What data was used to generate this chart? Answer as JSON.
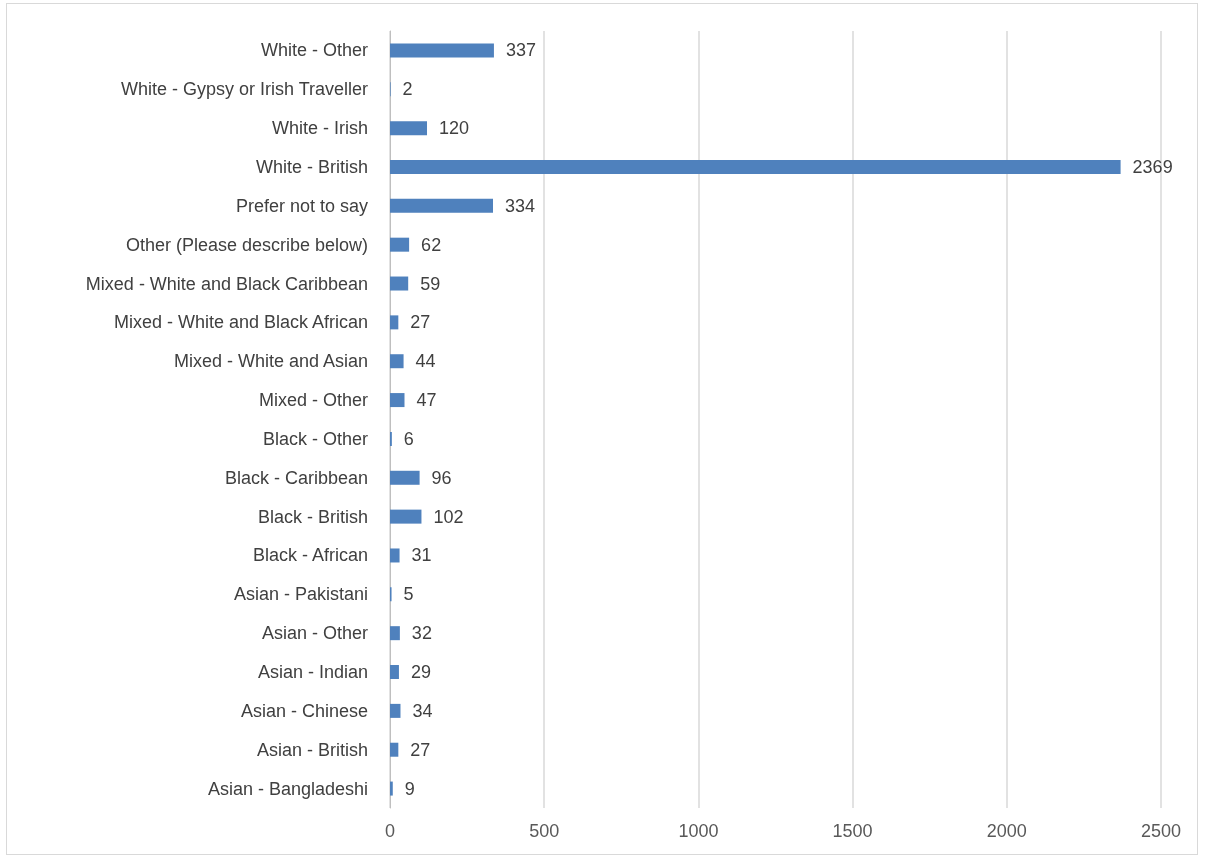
{
  "chart_data": {
    "type": "bar",
    "orientation": "horizontal",
    "categories": [
      "White - Other",
      "White - Gypsy or Irish Traveller",
      "White - Irish",
      "White - British",
      "Prefer not to say",
      "Other (Please describe below)",
      "Mixed - White and Black Caribbean",
      "Mixed - White and Black African",
      "Mixed - White and Asian",
      "Mixed - Other",
      "Black - Other",
      "Black - Caribbean",
      "Black - British",
      "Black - African",
      "Asian - Pakistani",
      "Asian - Other",
      "Asian - Indian",
      "Asian - Chinese",
      "Asian - British",
      "Asian - Bangladeshi"
    ],
    "values": [
      337,
      2,
      120,
      2369,
      334,
      62,
      59,
      27,
      44,
      47,
      6,
      96,
      102,
      31,
      5,
      32,
      29,
      34,
      27,
      9
    ],
    "color": "#4f81bd",
    "xlim": [
      0,
      2500
    ],
    "xticks": [
      0,
      500,
      1000,
      1500,
      2000,
      2500
    ],
    "grid": "x",
    "data_labels": true
  }
}
